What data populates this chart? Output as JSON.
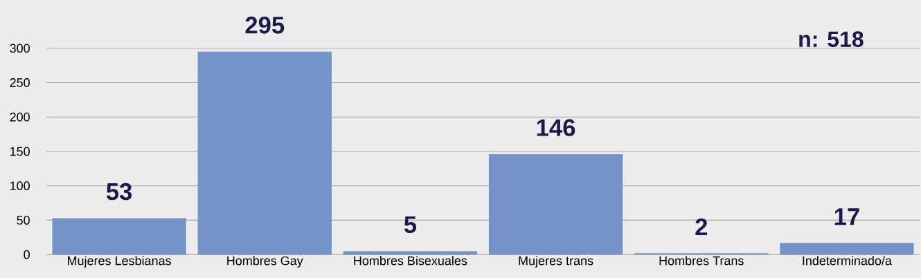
{
  "chart_data": {
    "type": "bar",
    "categories": [
      "Mujeres Lesbianas",
      "Hombres Gay",
      "Hombres Bisexuales",
      "Mujeres trans",
      "Hombres Trans",
      "Indeterminado/a"
    ],
    "values": [
      53,
      295,
      5,
      146,
      2,
      17
    ],
    "color": "#7494c8",
    "ylim": [
      0,
      370
    ],
    "yticks": [
      0,
      50,
      100,
      150,
      200,
      250,
      300
    ],
    "grid": "y",
    "data_labels": true,
    "annotations": [
      "n: 518"
    ]
  }
}
